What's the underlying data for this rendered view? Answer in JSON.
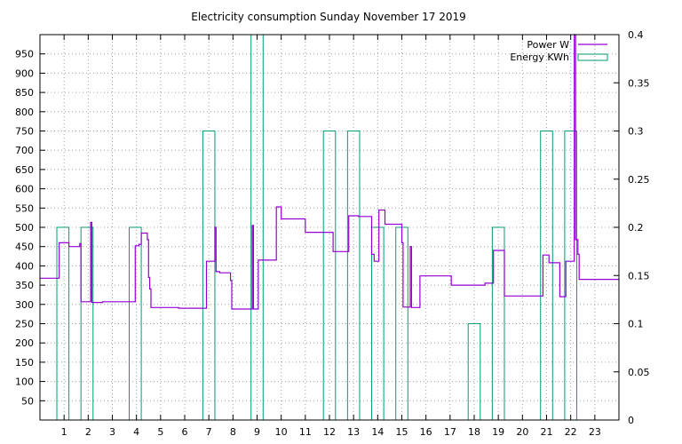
{
  "chart_data": {
    "type": "line",
    "title": "Electricity consumption Sunday November 17 2019",
    "x_ticks": [
      "1",
      "2",
      "3",
      "4",
      "5",
      "6",
      "7",
      "8",
      "9",
      "10",
      "11",
      "12",
      "13",
      "14",
      "15",
      "16",
      "17",
      "18",
      "19",
      "20",
      "21",
      "22",
      "23"
    ],
    "xlim": [
      0,
      24
    ],
    "y_left": {
      "ticks": [
        50,
        100,
        150,
        200,
        250,
        300,
        350,
        400,
        450,
        500,
        550,
        600,
        650,
        700,
        750,
        800,
        850,
        900,
        950
      ],
      "lim": [
        0,
        1000
      ]
    },
    "y_right": {
      "ticks": [
        "0",
        "0.05",
        "0.1",
        "0.15",
        "0.2",
        "0.25",
        "0.3",
        "0.35",
        "0.4"
      ],
      "lim": [
        0,
        0.4
      ]
    },
    "grid": true,
    "legend": {
      "placement": "top-right",
      "entries": [
        "Power W",
        "Energy KWh"
      ]
    },
    "colors": {
      "power": "#9400d3",
      "energy": "#009e73",
      "grid": "#a0a0a0",
      "axis": "#000000"
    },
    "series": [
      {
        "name": "Power W",
        "axis": "left",
        "style": "step",
        "points": [
          [
            0.0,
            368
          ],
          [
            0.8,
            368
          ],
          [
            0.8,
            460
          ],
          [
            1.2,
            460
          ],
          [
            1.2,
            450
          ],
          [
            1.65,
            450
          ],
          [
            1.65,
            458
          ],
          [
            1.7,
            458
          ],
          [
            1.7,
            307
          ],
          [
            2.1,
            307
          ],
          [
            2.1,
            513
          ],
          [
            2.15,
            513
          ],
          [
            2.15,
            305
          ],
          [
            2.6,
            305
          ],
          [
            2.6,
            307
          ],
          [
            3.95,
            307
          ],
          [
            3.95,
            452
          ],
          [
            4.1,
            452
          ],
          [
            4.1,
            456
          ],
          [
            4.2,
            456
          ],
          [
            4.2,
            485
          ],
          [
            4.45,
            485
          ],
          [
            4.45,
            468
          ],
          [
            4.5,
            468
          ],
          [
            4.5,
            370
          ],
          [
            4.55,
            370
          ],
          [
            4.55,
            340
          ],
          [
            4.6,
            340
          ],
          [
            4.6,
            292
          ],
          [
            5.75,
            292
          ],
          [
            5.75,
            290
          ],
          [
            6.9,
            290
          ],
          [
            6.9,
            412
          ],
          [
            7.25,
            412
          ],
          [
            7.25,
            500
          ],
          [
            7.3,
            500
          ],
          [
            7.3,
            385
          ],
          [
            7.45,
            385
          ],
          [
            7.45,
            382
          ],
          [
            7.9,
            382
          ],
          [
            7.9,
            362
          ],
          [
            7.95,
            362
          ],
          [
            7.95,
            288
          ],
          [
            8.8,
            288
          ],
          [
            8.8,
            505
          ],
          [
            8.85,
            505
          ],
          [
            8.85,
            288
          ],
          [
            9.05,
            288
          ],
          [
            9.05,
            415
          ],
          [
            9.8,
            415
          ],
          [
            9.8,
            553
          ],
          [
            10.0,
            553
          ],
          [
            10.0,
            522
          ],
          [
            11.0,
            522
          ],
          [
            11.0,
            487
          ],
          [
            12.15,
            487
          ],
          [
            12.15,
            437
          ],
          [
            12.8,
            437
          ],
          [
            12.8,
            530
          ],
          [
            13.2,
            530
          ],
          [
            13.2,
            528
          ],
          [
            13.75,
            528
          ],
          [
            13.75,
            430
          ],
          [
            13.85,
            430
          ],
          [
            13.85,
            412
          ],
          [
            14.05,
            412
          ],
          [
            14.05,
            545
          ],
          [
            14.3,
            545
          ],
          [
            14.3,
            508
          ],
          [
            15.0,
            508
          ],
          [
            15.0,
            460
          ],
          [
            15.05,
            460
          ],
          [
            15.05,
            293
          ],
          [
            15.35,
            293
          ],
          [
            15.35,
            450
          ],
          [
            15.4,
            450
          ],
          [
            15.4,
            292
          ],
          [
            15.75,
            292
          ],
          [
            15.75,
            374
          ],
          [
            17.05,
            374
          ],
          [
            17.05,
            350
          ],
          [
            18.45,
            350
          ],
          [
            18.45,
            355
          ],
          [
            18.8,
            355
          ],
          [
            18.8,
            440
          ],
          [
            19.25,
            440
          ],
          [
            19.25,
            322
          ],
          [
            20.85,
            322
          ],
          [
            20.85,
            428
          ],
          [
            21.1,
            428
          ],
          [
            21.1,
            408
          ],
          [
            21.55,
            408
          ],
          [
            21.55,
            320
          ],
          [
            21.8,
            320
          ],
          [
            21.8,
            412
          ],
          [
            22.15,
            412
          ],
          [
            22.15,
            1000
          ],
          [
            22.2,
            1000
          ],
          [
            22.2,
            468
          ],
          [
            22.3,
            468
          ],
          [
            22.3,
            430
          ],
          [
            22.35,
            430
          ],
          [
            22.35,
            365
          ],
          [
            24.0,
            365
          ]
        ]
      },
      {
        "name": "Energy KWh",
        "axis": "right",
        "style": "boxes",
        "bars": [
          [
            0.7,
            1.2,
            0.2
          ],
          [
            1.7,
            2.2,
            0.2
          ],
          [
            3.7,
            4.2,
            0.2
          ],
          [
            6.75,
            7.25,
            0.3
          ],
          [
            8.75,
            9.25,
            0.4
          ],
          [
            11.75,
            12.25,
            0.3
          ],
          [
            12.75,
            13.25,
            0.3
          ],
          [
            13.75,
            14.25,
            0.2
          ],
          [
            14.75,
            15.25,
            0.2
          ],
          [
            17.75,
            18.25,
            0.1
          ],
          [
            18.75,
            19.25,
            0.2
          ],
          [
            20.75,
            21.25,
            0.3
          ],
          [
            21.75,
            22.25,
            0.3
          ]
        ]
      }
    ]
  }
}
